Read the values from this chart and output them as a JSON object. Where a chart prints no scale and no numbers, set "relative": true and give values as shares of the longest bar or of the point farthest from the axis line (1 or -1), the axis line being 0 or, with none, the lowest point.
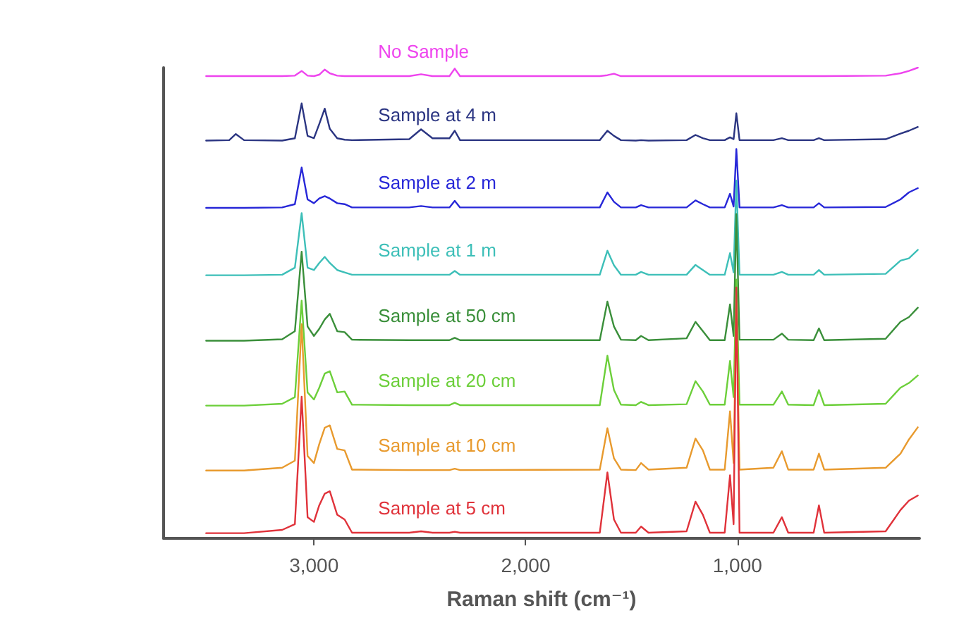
{
  "chart_data": {
    "type": "line",
    "relative": true,
    "xlabel": "Raman shift (cm⁻¹)",
    "xlim": [
      3710,
      140
    ],
    "xticks": [
      {
        "value": 3000,
        "label": "3,000"
      },
      {
        "value": 2000,
        "label": "2,000"
      },
      {
        "value": 1000,
        "label": "1,000"
      }
    ],
    "grid": false,
    "legend": false,
    "marker": "none",
    "line_style": "solid",
    "x": [
      3509,
      3400,
      3369,
      3330,
      3150,
      3090,
      3058,
      3030,
      3000,
      2975,
      2949,
      2925,
      2890,
      2855,
      2820,
      2550,
      2494,
      2440,
      2360,
      2335,
      2310,
      1650,
      1614,
      1583,
      1550,
      1480,
      1455,
      1420,
      1240,
      1198,
      1163,
      1130,
      1060,
      1035,
      1018,
      1005,
      990,
      830,
      790,
      760,
      640,
      615,
      590,
      300,
      230,
      190,
      148
    ],
    "series": [
      {
        "name": "No Sample",
        "color": "#ee44ee",
        "values": [
          0.982,
          0.982,
          0.982,
          0.982,
          0.982,
          0.983,
          0.993,
          0.983,
          0.982,
          0.985,
          0.996,
          0.988,
          0.983,
          0.982,
          0.982,
          0.982,
          0.986,
          0.982,
          0.982,
          0.998,
          0.982,
          0.982,
          0.984,
          0.987,
          0.982,
          0.982,
          0.982,
          0.982,
          0.982,
          0.982,
          0.982,
          0.982,
          0.982,
          0.982,
          0.982,
          0.982,
          0.982,
          0.982,
          0.982,
          0.982,
          0.982,
          0.982,
          0.982,
          0.983,
          0.988,
          0.993,
          1.0
        ]
      },
      {
        "name": "Sample at 4 m",
        "color": "#2b3582",
        "values": [
          0.845,
          0.846,
          0.859,
          0.846,
          0.845,
          0.85,
          0.924,
          0.855,
          0.85,
          0.88,
          0.913,
          0.87,
          0.85,
          0.847,
          0.846,
          0.848,
          0.869,
          0.85,
          0.85,
          0.866,
          0.846,
          0.846,
          0.866,
          0.855,
          0.846,
          0.845,
          0.846,
          0.845,
          0.846,
          0.857,
          0.85,
          0.846,
          0.846,
          0.852,
          0.848,
          0.903,
          0.846,
          0.846,
          0.85,
          0.846,
          0.846,
          0.85,
          0.846,
          0.848,
          0.86,
          0.866,
          0.874
        ]
      },
      {
        "name": "Sample at 2 m",
        "color": "#2727d8",
        "values": [
          0.702,
          0.702,
          0.702,
          0.702,
          0.703,
          0.71,
          0.788,
          0.72,
          0.712,
          0.722,
          0.727,
          0.722,
          0.712,
          0.71,
          0.703,
          0.703,
          0.706,
          0.703,
          0.703,
          0.717,
          0.703,
          0.703,
          0.735,
          0.715,
          0.703,
          0.703,
          0.708,
          0.703,
          0.703,
          0.718,
          0.71,
          0.703,
          0.703,
          0.732,
          0.705,
          0.827,
          0.703,
          0.703,
          0.708,
          0.703,
          0.703,
          0.712,
          0.703,
          0.704,
          0.72,
          0.735,
          0.744
        ]
      },
      {
        "name": "Sample at 1 m",
        "color": "#3dbfb8",
        "values": [
          0.559,
          0.559,
          0.559,
          0.559,
          0.56,
          0.575,
          0.691,
          0.575,
          0.57,
          0.585,
          0.598,
          0.585,
          0.57,
          0.565,
          0.56,
          0.56,
          0.56,
          0.56,
          0.56,
          0.568,
          0.56,
          0.56,
          0.611,
          0.58,
          0.56,
          0.56,
          0.566,
          0.56,
          0.56,
          0.581,
          0.57,
          0.56,
          0.56,
          0.606,
          0.565,
          0.76,
          0.56,
          0.56,
          0.566,
          0.56,
          0.56,
          0.57,
          0.56,
          0.562,
          0.59,
          0.595,
          0.613
        ]
      },
      {
        "name": "Sample at 50 cm",
        "color": "#3a8f3a",
        "values": [
          0.42,
          0.42,
          0.42,
          0.42,
          0.423,
          0.44,
          0.609,
          0.45,
          0.43,
          0.445,
          0.465,
          0.477,
          0.44,
          0.438,
          0.422,
          0.421,
          0.421,
          0.421,
          0.421,
          0.426,
          0.421,
          0.421,
          0.503,
          0.45,
          0.422,
          0.421,
          0.43,
          0.421,
          0.425,
          0.46,
          0.44,
          0.421,
          0.421,
          0.497,
          0.43,
          0.689,
          0.422,
          0.422,
          0.435,
          0.422,
          0.421,
          0.446,
          0.421,
          0.424,
          0.46,
          0.47,
          0.49
        ]
      },
      {
        "name": "Sample at 20 cm",
        "color": "#6ccf3a",
        "values": [
          0.282,
          0.282,
          0.282,
          0.282,
          0.286,
          0.3,
          0.505,
          0.31,
          0.295,
          0.32,
          0.35,
          0.355,
          0.31,
          0.312,
          0.284,
          0.283,
          0.283,
          0.283,
          0.283,
          0.288,
          0.283,
          0.283,
          0.388,
          0.315,
          0.284,
          0.283,
          0.29,
          0.283,
          0.285,
          0.334,
          0.312,
          0.284,
          0.284,
          0.377,
          0.3,
          0.55,
          0.284,
          0.284,
          0.312,
          0.284,
          0.283,
          0.315,
          0.283,
          0.286,
          0.32,
          0.33,
          0.346
        ]
      },
      {
        "name": "Sample at 10 cm",
        "color": "#e89a2e",
        "values": [
          0.144,
          0.144,
          0.144,
          0.144,
          0.15,
          0.165,
          0.455,
          0.175,
          0.16,
          0.2,
          0.235,
          0.24,
          0.19,
          0.187,
          0.146,
          0.145,
          0.145,
          0.145,
          0.145,
          0.148,
          0.145,
          0.146,
          0.234,
          0.17,
          0.146,
          0.145,
          0.16,
          0.146,
          0.15,
          0.212,
          0.187,
          0.146,
          0.146,
          0.27,
          0.16,
          0.5,
          0.146,
          0.15,
          0.185,
          0.146,
          0.146,
          0.18,
          0.146,
          0.15,
          0.18,
          0.21,
          0.236
        ]
      },
      {
        "name": "Sample at 5 cm",
        "color": "#e0323a",
        "values": [
          0.011,
          0.011,
          0.011,
          0.011,
          0.018,
          0.03,
          0.301,
          0.045,
          0.035,
          0.07,
          0.095,
          0.1,
          0.05,
          0.04,
          0.012,
          0.012,
          0.015,
          0.012,
          0.012,
          0.014,
          0.012,
          0.012,
          0.14,
          0.04,
          0.012,
          0.012,
          0.025,
          0.012,
          0.015,
          0.078,
          0.05,
          0.012,
          0.012,
          0.134,
          0.03,
          0.533,
          0.012,
          0.012,
          0.045,
          0.012,
          0.012,
          0.07,
          0.012,
          0.015,
          0.06,
          0.08,
          0.091
        ]
      }
    ]
  }
}
